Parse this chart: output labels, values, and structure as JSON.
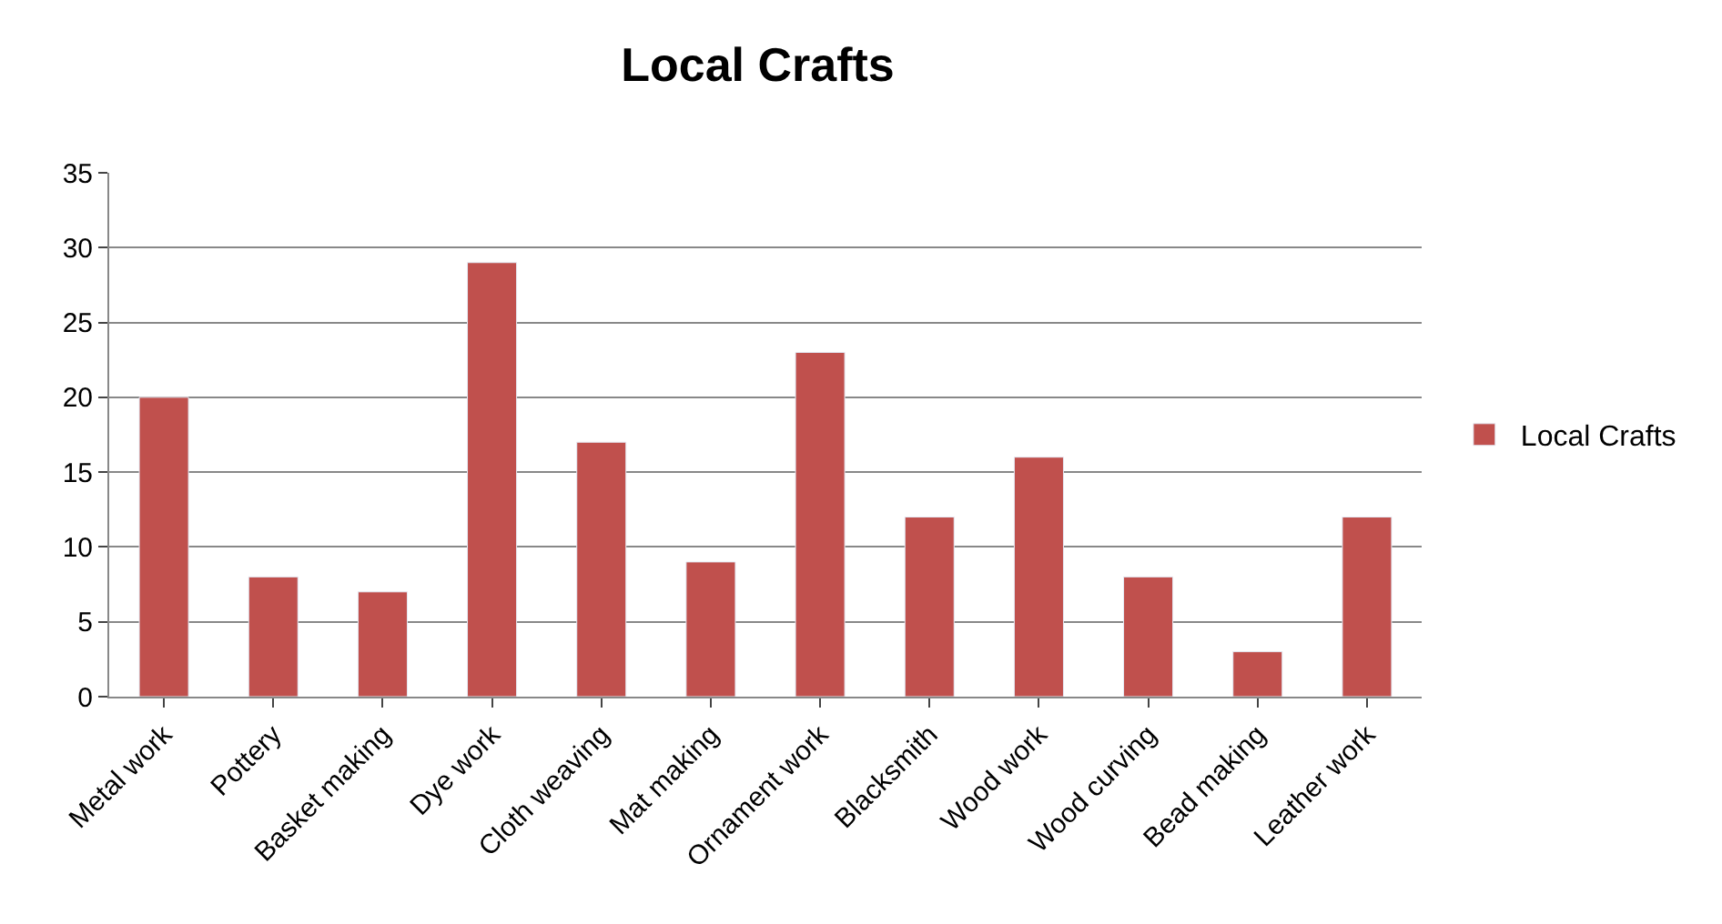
{
  "chart_data": {
    "type": "bar",
    "title": "Local Crafts",
    "categories": [
      "Metal work",
      "Pottery",
      "Basket making",
      "Dye work",
      "Cloth weaving",
      "Mat making",
      "Ornament work",
      "Blacksmith",
      "Wood work",
      "Wood curving",
      "Bead making",
      "Leather work"
    ],
    "series": [
      {
        "name": "Local Crafts",
        "color": "#c0504d",
        "values": [
          20,
          8,
          7,
          29,
          17,
          9,
          23,
          12,
          16,
          8,
          3,
          12
        ]
      }
    ],
    "ylim": [
      0,
      35
    ],
    "yticks": [
      0,
      5,
      10,
      15,
      20,
      25,
      30,
      35
    ],
    "grid": "y",
    "legend": "right"
  }
}
